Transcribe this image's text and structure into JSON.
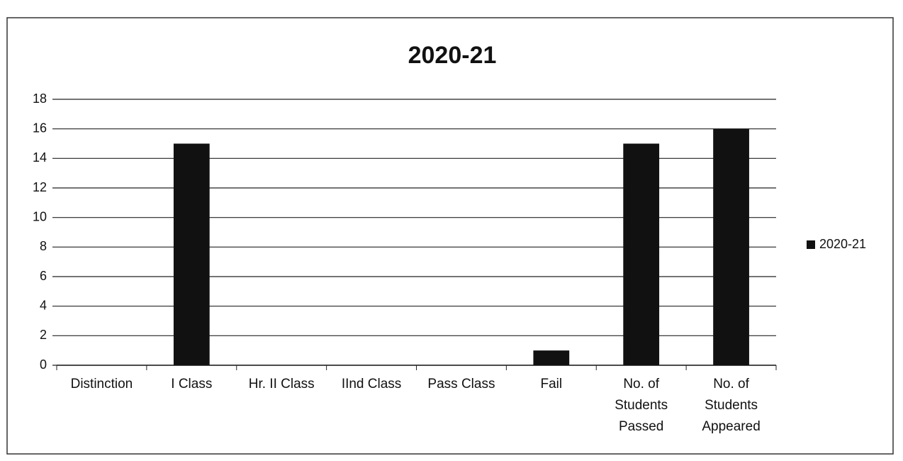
{
  "chart_data": {
    "type": "bar",
    "title": "2020-21",
    "categories": [
      "Distinction",
      "I Class",
      "Hr. II Class",
      "IInd Class",
      "Pass Class",
      "Fail",
      "No. of Students Passed",
      "No. of Students Appeared"
    ],
    "series": [
      {
        "name": "2020-21",
        "color": "#111111",
        "values": [
          0,
          15,
          0,
          0,
          0,
          1,
          15,
          16
        ]
      }
    ],
    "ylim": [
      0,
      18
    ],
    "yticks": [
      0,
      2,
      4,
      6,
      8,
      10,
      12,
      14,
      16,
      18
    ],
    "grid": true,
    "legend": "right"
  }
}
